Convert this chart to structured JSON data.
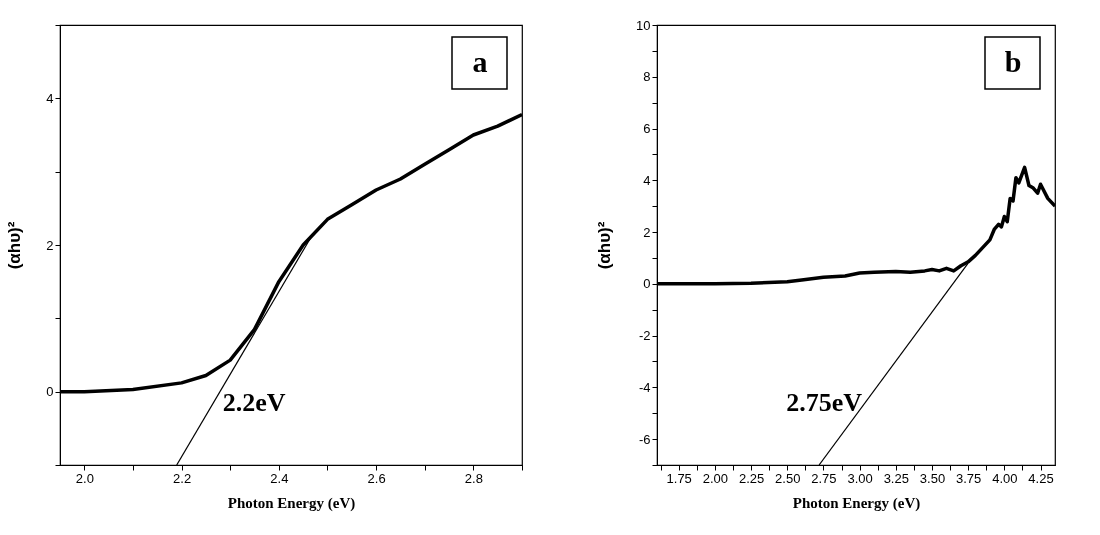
{
  "chart_data": [
    {
      "type": "line",
      "xlabel": "Photon Energy (eV)",
      "ylabel": "(αhυ)²",
      "annotations": [
        "a",
        "2.2eV"
      ],
      "xlim": [
        1.95,
        2.9
      ],
      "ylim": [
        -1,
        5
      ],
      "xticks": [
        {
          "value": 2.0,
          "label": "2.0"
        },
        {
          "value": 2.1,
          "label": null
        },
        {
          "value": 2.2,
          "label": "2.2"
        },
        {
          "value": 2.3,
          "label": null
        },
        {
          "value": 2.4,
          "label": "2.4"
        },
        {
          "value": 2.5,
          "label": null
        },
        {
          "value": 2.6,
          "label": "2.6"
        },
        {
          "value": 2.7,
          "label": null
        },
        {
          "value": 2.8,
          "label": "2.8"
        },
        {
          "value": 2.9,
          "label": null
        }
      ],
      "yticks": [
        {
          "value": -1,
          "label": null
        },
        0,
        {
          "value": 1,
          "label": null
        },
        2,
        {
          "value": 3,
          "label": null
        },
        4,
        {
          "value": 5,
          "label": null
        }
      ],
      "series": [
        {
          "color": "#000000",
          "x": [
            1.95,
            2.0,
            2.1,
            2.2,
            2.25,
            2.3,
            2.35,
            2.4,
            2.45,
            2.5,
            2.55,
            2.6,
            2.65,
            2.7,
            2.75,
            2.8,
            2.85,
            2.9
          ],
          "values": [
            0,
            0,
            0.03,
            0.12,
            0.22,
            0.43,
            0.85,
            1.5,
            2.0,
            2.35,
            2.55,
            2.75,
            2.9,
            3.1,
            3.3,
            3.5,
            3.62,
            3.78
          ]
        },
        {
          "type": "line",
          "color": "#000000",
          "x": [
            2.19,
            2.47
          ],
          "values": [
            -1,
            2.15
          ]
        }
      ]
    },
    {
      "type": "line",
      "xlabel": "Photon Energy (eV)",
      "ylabel": "(αhυ)²",
      "annotations": [
        "b",
        "2.75eV"
      ],
      "xlim": [
        1.6,
        4.35
      ],
      "ylim": [
        -7,
        10
      ],
      "xticks": [
        {
          "value": 1.625,
          "label": null
        },
        {
          "value": 1.75,
          "label": "1.75"
        },
        {
          "value": 1.875,
          "label": null
        },
        {
          "value": 2.0,
          "label": "2.00"
        },
        {
          "value": 2.125,
          "label": null
        },
        {
          "value": 2.25,
          "label": "2.25"
        },
        {
          "value": 2.375,
          "label": null
        },
        {
          "value": 2.5,
          "label": "2.50"
        },
        {
          "value": 2.625,
          "label": null
        },
        {
          "value": 2.75,
          "label": "2.75"
        },
        {
          "value": 2.875,
          "label": null
        },
        {
          "value": 3.0,
          "label": "3.00"
        },
        {
          "value": 3.125,
          "label": null
        },
        {
          "value": 3.25,
          "label": "3.25"
        },
        {
          "value": 3.375,
          "label": null
        },
        {
          "value": 3.5,
          "label": "3.50"
        },
        {
          "value": 3.625,
          "label": null
        },
        {
          "value": 3.75,
          "label": "3.75"
        },
        {
          "value": 3.875,
          "label": null
        },
        {
          "value": 4.0,
          "label": "4.00"
        },
        {
          "value": 4.125,
          "label": null
        },
        {
          "value": 4.25,
          "label": "4.25"
        }
      ],
      "yticks": [
        {
          "value": -7,
          "label": null
        },
        -6,
        {
          "value": -5,
          "label": null
        },
        -4,
        {
          "value": -3,
          "label": null
        },
        -2,
        {
          "value": -1,
          "label": null
        },
        0,
        {
          "value": 1,
          "label": null
        },
        2,
        {
          "value": 3,
          "label": null
        },
        4,
        {
          "value": 5,
          "label": null
        },
        6,
        {
          "value": 7,
          "label": null
        },
        8,
        {
          "value": 9,
          "label": null
        },
        10
      ],
      "series": [
        {
          "color": "#000000",
          "x": [
            1.6,
            2.0,
            2.25,
            2.5,
            2.6,
            2.75,
            2.9,
            3.0,
            3.1,
            3.25,
            3.35,
            3.45,
            3.5,
            3.55,
            3.6,
            3.65,
            3.7,
            3.75,
            3.8,
            3.85,
            3.9,
            3.93,
            3.96,
            3.98,
            4.0,
            4.02,
            4.04,
            4.06,
            4.08,
            4.1,
            4.14,
            4.17,
            4.2,
            4.23,
            4.25,
            4.3,
            4.35
          ],
          "values": [
            0,
            0,
            0.02,
            0.08,
            0.15,
            0.25,
            0.3,
            0.42,
            0.45,
            0.48,
            0.45,
            0.5,
            0.55,
            0.5,
            0.6,
            0.5,
            0.7,
            0.85,
            1.1,
            1.4,
            1.7,
            2.1,
            2.3,
            2.2,
            2.6,
            2.4,
            3.3,
            3.2,
            4.1,
            3.9,
            4.5,
            3.8,
            3.7,
            3.5,
            3.85,
            3.3,
            3.0
          ]
        },
        {
          "type": "line",
          "color": "#000000",
          "x": [
            3.75,
            2.72
          ],
          "values": [
            0.8,
            -7
          ]
        }
      ]
    }
  ]
}
